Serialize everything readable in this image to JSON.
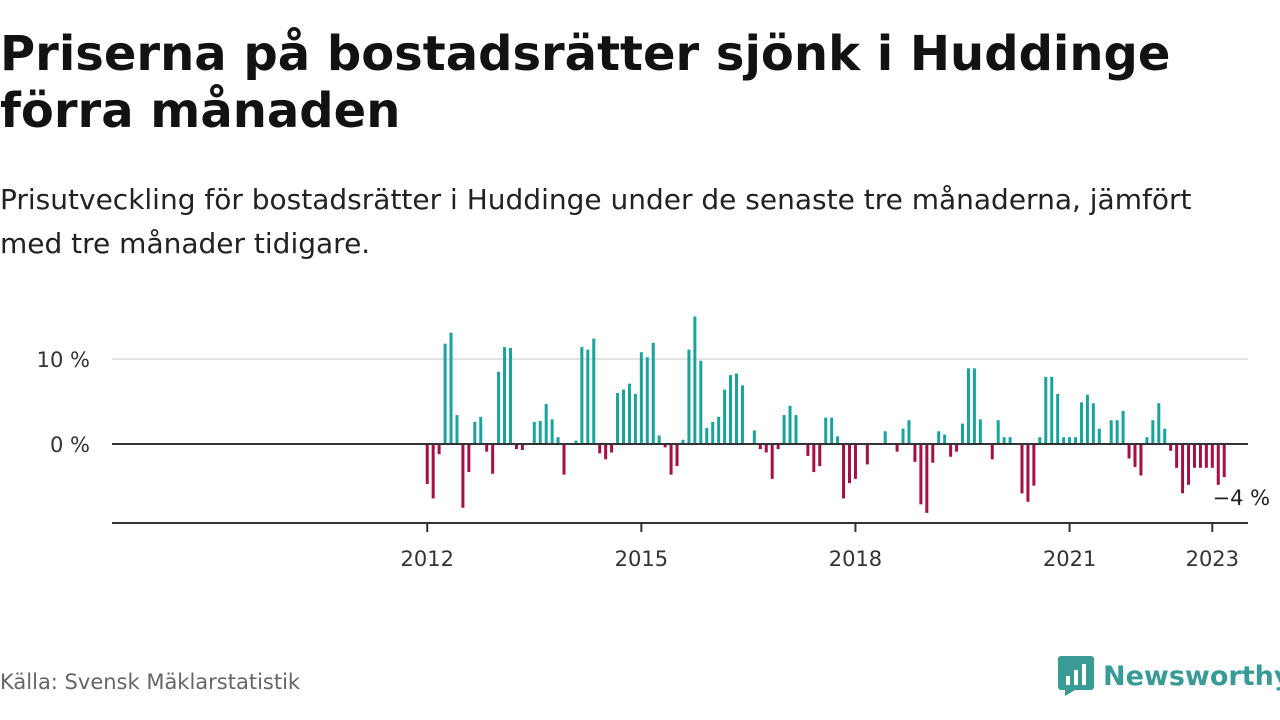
{
  "header": {
    "title": "Priserna på bostadsrätter sjönk i Huddinge förra månaden",
    "subtitle": "Prisutveckling för bostadsrätter i Huddinge under de senaste tre månaderna, jämfört med tre månader tidigare."
  },
  "footer": {
    "source": "Källa: Svensk Mäklarstatistik",
    "brand": "Newsworthy",
    "brand_icon": "newsworthy-logo-icon"
  },
  "colors": {
    "positive": "#1aa39a",
    "negative": "#a50f44",
    "axis": "#333333",
    "grid": "#d9d9d9",
    "brand": "#3a9a95"
  },
  "chart_data": {
    "type": "bar",
    "title": "Priserna på bostadsrätter sjönk i Huddinge förra månaden",
    "subtitle": "Prisutveckling för bostadsrätter i Huddinge under de senaste tre månaderna, jämfört med tre månader tidigare.",
    "xlabel": "",
    "ylabel": "",
    "x_start": "2012-01",
    "x_ticks": [
      {
        "date": "2012-01",
        "label": "2012"
      },
      {
        "date": "2015-01",
        "label": "2015"
      },
      {
        "date": "2018-01",
        "label": "2018"
      },
      {
        "date": "2021-01",
        "label": "2021"
      },
      {
        "date": "2023-01",
        "label": "2023"
      }
    ],
    "y_ticks": [
      {
        "value": 0,
        "label": "0 %"
      },
      {
        "value": 10,
        "label": "10 %"
      }
    ],
    "ylim": [
      -9.5,
      15.5
    ],
    "xlim": [
      "2007-08",
      "2023-07"
    ],
    "grid": true,
    "annotation": {
      "label": "−4 %",
      "date": "2023-01",
      "value": -3.9
    },
    "values": [
      -4.7,
      -6.4,
      -1.2,
      11.8,
      13.1,
      3.4,
      -7.5,
      -3.3,
      2.6,
      3.2,
      -0.9,
      -3.5,
      8.5,
      11.4,
      11.3,
      -0.6,
      -0.7,
      0.0,
      2.6,
      2.7,
      4.7,
      2.9,
      0.8,
      -3.6,
      0.0,
      0.4,
      11.4,
      11.1,
      12.4,
      -1.1,
      -1.8,
      -1.0,
      6.0,
      6.4,
      7.1,
      5.9,
      10.8,
      10.2,
      11.9,
      1.0,
      -0.4,
      -3.6,
      -2.6,
      0.5,
      11.1,
      15.0,
      9.8,
      1.9,
      2.6,
      3.2,
      6.4,
      8.1,
      8.3,
      6.9,
      0.0,
      1.6,
      -0.6,
      -1.0,
      -4.1,
      -0.6,
      3.4,
      4.5,
      3.4,
      0.0,
      -1.4,
      -3.3,
      -2.6,
      3.1,
      3.1,
      0.9,
      -6.4,
      -4.6,
      -4.1,
      0.0,
      -2.4,
      0.0,
      0.0,
      1.5,
      0.0,
      -0.9,
      1.8,
      2.8,
      -2.1,
      -7.1,
      -8.1,
      -2.2,
      1.5,
      1.1,
      -1.5,
      -0.9,
      2.4,
      8.9,
      8.9,
      2.9,
      0.0,
      -1.8,
      2.8,
      0.8,
      0.8,
      0.0,
      -5.8,
      -6.8,
      -4.9,
      0.8,
      7.9,
      7.9,
      5.9,
      0.8,
      0.8,
      0.8,
      4.9,
      5.8,
      4.8,
      1.8,
      0.0,
      2.8,
      2.8,
      3.9,
      -1.7,
      -2.7,
      -3.7,
      0.8,
      2.8,
      4.8,
      1.8,
      -0.8,
      -2.8,
      -5.8,
      -4.8,
      -2.8,
      -2.8,
      -2.8,
      -2.8,
      -4.8,
      -3.9
    ]
  }
}
